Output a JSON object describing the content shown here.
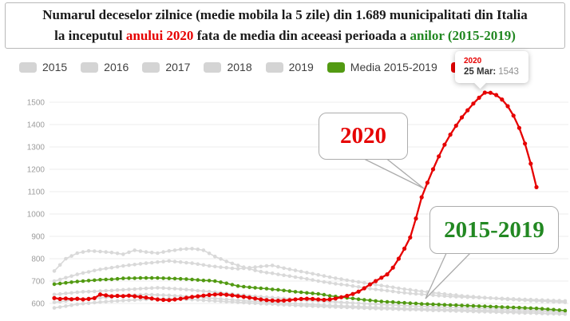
{
  "title": {
    "line1": "Numarul deceselor zilnice (medie mobila la 5 zile) din 1.689 municipalitati din Italia",
    "line2_pre": "la inceputul ",
    "line2_red": "anului 2020",
    "line2_mid": " fata de media din aceeasi perioada a ",
    "line2_green": "anilor (2015-2019)"
  },
  "legend": {
    "items": [
      {
        "label": "2015",
        "color": "#d4d4d4"
      },
      {
        "label": "2016",
        "color": "#d4d4d4"
      },
      {
        "label": "2017",
        "color": "#d4d4d4"
      },
      {
        "label": "2018",
        "color": "#d4d4d4"
      },
      {
        "label": "2019",
        "color": "#d4d4d4"
      },
      {
        "label": "Media 2015-2019",
        "color": "#529a12"
      },
      {
        "label": "2020",
        "color": "#e60000"
      }
    ]
  },
  "tooltip": {
    "series": "2020",
    "date_label": "25 Mar:",
    "value": "1543"
  },
  "callouts": {
    "red_label": "2020",
    "green_label": "2015-2019"
  },
  "chart_data": {
    "type": "line",
    "title": "Numarul deceselor zilnice (medie mobila la 5 zile) din 1.689 municipalitati din Italia la inceputul anului 2020 fata de media din aceeasi perioada a anilor (2015-2019)",
    "xlabel": "",
    "ylabel": "",
    "ylim": [
      545,
      1560
    ],
    "yticks": [
      600,
      700,
      800,
      900,
      1000,
      1100,
      1200,
      1300,
      1400,
      1500
    ],
    "grid": true,
    "legend_position": "top-left",
    "peak_annotation": {
      "series": "2020",
      "date": "25 Mar",
      "value": 1543,
      "index": 75
    },
    "series": [
      {
        "name": "2015",
        "color": "#d9d9d9",
        "values": [
          745,
          772,
          800,
          812,
          825,
          830,
          835,
          834,
          832,
          830,
          828,
          824,
          820,
          829,
          838,
          834,
          830,
          828,
          825,
          830,
          835,
          838,
          842,
          844,
          845,
          842,
          838,
          824,
          810,
          799,
          788,
          779,
          770,
          762,
          755,
          748,
          742,
          738,
          735,
          730,
          726,
          722,
          718,
          714,
          710,
          705,
          700,
          696,
          692,
          688,
          685,
          682,
          678,
          674,
          670,
          666,
          663,
          660,
          657,
          654,
          650,
          648,
          645,
          643,
          641,
          639,
          637,
          635,
          633,
          631,
          630,
          629,
          628,
          627,
          626,
          625,
          624,
          623,
          622,
          621,
          620,
          619,
          618,
          617,
          616,
          615,
          614,
          613,
          612,
          611
        ]
      },
      {
        "name": "2016",
        "color": "#d9d9d9",
        "values": [
          640,
          642,
          645,
          647,
          650,
          652,
          653,
          654,
          655,
          657,
          658,
          660,
          661,
          663,
          664,
          666,
          667,
          669,
          670,
          669,
          667,
          666,
          664,
          662,
          660,
          657,
          655,
          653,
          650,
          648,
          645,
          642,
          639,
          637,
          634,
          632,
          630,
          628,
          626,
          624,
          622,
          620,
          618,
          616,
          614,
          613,
          611,
          610,
          608,
          607,
          605,
          604,
          602,
          601,
          599,
          598,
          597,
          595,
          594,
          593,
          592,
          590,
          589,
          588,
          587,
          586,
          585,
          584,
          583,
          582,
          581,
          580,
          580,
          579,
          578,
          577,
          577,
          576,
          575,
          574,
          573,
          573,
          572,
          571,
          570,
          570,
          569,
          568,
          568,
          567
        ]
      },
      {
        "name": "2017",
        "color": "#d9d9d9",
        "values": [
          700,
          707,
          715,
          722,
          730,
          736,
          741,
          747,
          752,
          756,
          760,
          764,
          768,
          771,
          774,
          777,
          780,
          782,
          785,
          787,
          790,
          787,
          785,
          782,
          780,
          776,
          772,
          768,
          765,
          762,
          760,
          757,
          755,
          757,
          760,
          762,
          765,
          768,
          770,
          764,
          758,
          753,
          748,
          743,
          738,
          733,
          728,
          723,
          718,
          713,
          709,
          704,
          700,
          696,
          692,
          688,
          684,
          680,
          676,
          672,
          668,
          664,
          661,
          657,
          654,
          651,
          648,
          645,
          642,
          639,
          637,
          634,
          632,
          630,
          628,
          626,
          624,
          622,
          620,
          618,
          617,
          615,
          614,
          612,
          611,
          610,
          609,
          607,
          606,
          605
        ]
      },
      {
        "name": "2018",
        "color": "#d9d9d9",
        "values": [
          605,
          608,
          611,
          615,
          618,
          620,
          622,
          623,
          625,
          627,
          629,
          632,
          634,
          636,
          637,
          639,
          640,
          639,
          638,
          637,
          636,
          634,
          633,
          631,
          630,
          628,
          626,
          624,
          622,
          620,
          618,
          616,
          614,
          612,
          610,
          609,
          607,
          606,
          604,
          603,
          601,
          600,
          599,
          597,
          596,
          595,
          594,
          592,
          591,
          590,
          589,
          588,
          587,
          586,
          585,
          584,
          583,
          582,
          581,
          580,
          579,
          578,
          577,
          577,
          576,
          575,
          574,
          574,
          573,
          572,
          571,
          571,
          570,
          570,
          569,
          569,
          568,
          567,
          567,
          566,
          565,
          565,
          564,
          564,
          563,
          562,
          562,
          561,
          561,
          560
        ]
      },
      {
        "name": "2019",
        "color": "#d9d9d9",
        "values": [
          580,
          584,
          588,
          592,
          596,
          599,
          601,
          604,
          606,
          608,
          610,
          611,
          613,
          614,
          615,
          617,
          618,
          619,
          620,
          620,
          621,
          620,
          619,
          618,
          617,
          616,
          614,
          613,
          611,
          610,
          608,
          607,
          605,
          604,
          602,
          601,
          599,
          598,
          597,
          595,
          594,
          593,
          591,
          590,
          589,
          588,
          587,
          586,
          585,
          584,
          583,
          582,
          581,
          580,
          579,
          578,
          577,
          576,
          576,
          575,
          574,
          573,
          572,
          572,
          571,
          570,
          569,
          569,
          568,
          567,
          566,
          566,
          565,
          564,
          563,
          563,
          562,
          561,
          560,
          560,
          559,
          558,
          557,
          557,
          556,
          555,
          554,
          554,
          553,
          552
        ]
      },
      {
        "name": "Media 2015-2019",
        "color": "#529a12",
        "values": [
          686,
          689,
          692,
          695,
          698,
          700,
          702,
          704,
          706,
          707,
          708,
          710,
          712,
          713,
          713,
          714,
          714,
          714,
          714,
          713,
          712,
          711,
          710,
          709,
          707,
          705,
          703,
          702,
          700,
          695,
          690,
          684,
          678,
          675,
          672,
          670,
          668,
          666,
          663,
          661,
          658,
          655,
          652,
          650,
          647,
          645,
          643,
          639,
          634,
          631,
          628,
          625,
          622,
          619,
          616,
          614,
          611,
          609,
          607,
          606,
          604,
          603,
          601,
          600,
          598,
          597,
          596,
          595,
          594,
          593,
          592,
          591,
          590,
          589,
          588,
          587,
          586,
          585,
          584,
          583,
          582,
          581,
          580,
          579,
          578,
          576,
          574,
          572,
          570,
          568
        ]
      },
      {
        "name": "2020",
        "color": "#e60000",
        "values": [
          624,
          620,
          622,
          619,
          621,
          618,
          620,
          624,
          640,
          636,
          632,
          634,
          633,
          635,
          632,
          629,
          626,
          622,
          618,
          616,
          615,
          618,
          621,
          625,
          629,
          632,
          635,
          638,
          640,
          641,
          639,
          636,
          633,
          630,
          626,
          622,
          618,
          615,
          613,
          612,
          613,
          615,
          618,
          620,
          621,
          620,
          618,
          616,
          618,
          622,
          628,
          634,
          642,
          653,
          668,
          685,
          700,
          715,
          730,
          760,
          800,
          845,
          895,
          980,
          1075,
          1140,
          1200,
          1258,
          1310,
          1355,
          1395,
          1432,
          1464,
          1494,
          1520,
          1543,
          1542,
          1532,
          1512,
          1482,
          1440,
          1385,
          1315,
          1225,
          1120
        ]
      }
    ]
  }
}
